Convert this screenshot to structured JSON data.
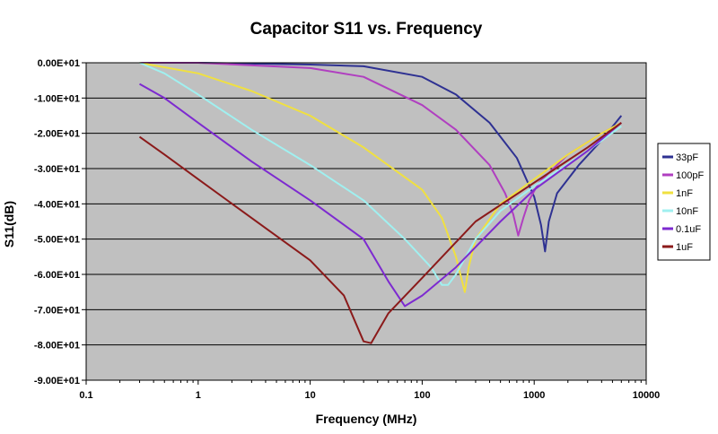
{
  "chart_data": {
    "type": "line",
    "title": "Capacitor S11 vs. Frequency",
    "xlabel": "Frequency (MHz)",
    "ylabel": "S11(dB)",
    "x_scale": "log",
    "xlim": [
      0.1,
      10000
    ],
    "ylim": [
      -90,
      0
    ],
    "x_ticks": [
      0.1,
      1,
      10,
      100,
      1000,
      10000
    ],
    "x_tick_labels": [
      "0.1",
      "1",
      "10",
      "100",
      "1000",
      "10000"
    ],
    "y_ticks": [
      0,
      -10,
      -20,
      -30,
      -40,
      -50,
      -60,
      -70,
      -80,
      -90
    ],
    "y_tick_labels": [
      "0.00E+01",
      "-1.00E+01",
      "-2.00E+01",
      "-3.00E+01",
      "-4.00E+01",
      "-5.00E+01",
      "-6.00E+01",
      "-7.00E+01",
      "-8.00E+01",
      "-9.00E+01"
    ],
    "grid": "horizontal",
    "legend_position": "right",
    "plot_background": "#c0c0c0",
    "series": [
      {
        "name": "33pF",
        "color": "#2e3192",
        "x": [
          0.3,
          1,
          10,
          30,
          100,
          200,
          400,
          700,
          1000,
          1150,
          1250,
          1350,
          1600,
          2500,
          4000,
          6000
        ],
        "y": [
          0,
          0,
          -0.5,
          -1,
          -4,
          -9,
          -17,
          -27,
          -38,
          -46,
          -53.5,
          -45,
          -37,
          -29,
          -22,
          -15
        ]
      },
      {
        "name": "100pF",
        "color": "#b03fc0",
        "x": [
          0.3,
          1,
          10,
          30,
          100,
          200,
          400,
          550,
          650,
          720,
          800,
          900,
          1100,
          2000,
          4000,
          6000
        ],
        "y": [
          0,
          0,
          -1.5,
          -4,
          -12,
          -19,
          -29,
          -37,
          -43,
          -49,
          -44,
          -39,
          -34,
          -26,
          -20,
          -17
        ]
      },
      {
        "name": "1nF",
        "color": "#f0e040",
        "x": [
          0.3,
          1,
          3,
          10,
          30,
          100,
          150,
          200,
          240,
          260,
          300,
          500,
          1000,
          2000,
          4000,
          6000
        ],
        "y": [
          0,
          -3,
          -8,
          -15,
          -24,
          -36,
          -44,
          -55,
          -65,
          -58,
          -50,
          -40,
          -33,
          -26,
          -20,
          -17
        ]
      },
      {
        "name": "10nF",
        "color": "#a0f0f0",
        "x": [
          0.3,
          0.5,
          1,
          3,
          10,
          30,
          70,
          120,
          150,
          170,
          200,
          300,
          500,
          1000,
          3000,
          6000
        ],
        "y": [
          0,
          -3,
          -9,
          -19,
          -29,
          -39,
          -50,
          -58,
          -63,
          -63,
          -60,
          -50,
          -42,
          -35,
          -25,
          -18
        ]
      },
      {
        "name": "0.1uF",
        "color": "#7d2ad0",
        "x": [
          0.3,
          0.5,
          1,
          3,
          10,
          30,
          50,
          70,
          100,
          200,
          500,
          1000,
          3000,
          6000
        ],
        "y": [
          -6,
          -10,
          -17,
          -28,
          -39,
          -50,
          -62,
          -69,
          -66,
          -58,
          -45,
          -36,
          -25,
          -17
        ]
      },
      {
        "name": "1uF",
        "color": "#8b1a1a",
        "x": [
          0.3,
          0.5,
          1,
          3,
          10,
          20,
          30,
          35,
          50,
          100,
          300,
          1000,
          3000,
          6000
        ],
        "y": [
          -21,
          -26,
          -33,
          -44,
          -56,
          -66,
          -79,
          -79.5,
          -71,
          -61,
          -45,
          -34,
          -24,
          -17
        ]
      }
    ]
  }
}
